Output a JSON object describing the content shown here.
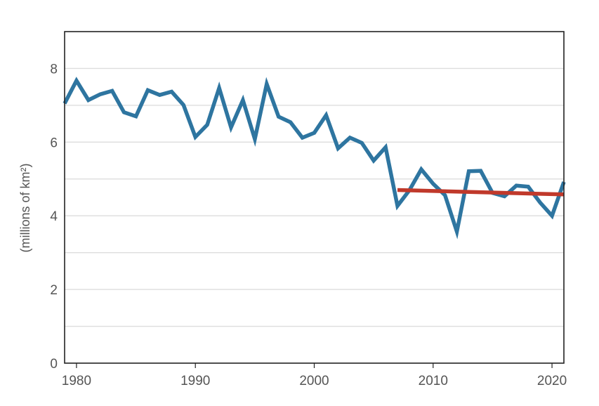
{
  "chart_data": {
    "type": "line",
    "title": "",
    "xlabel": "",
    "ylabel": "(millions of km²)",
    "xlim": [
      1979,
      2021
    ],
    "ylim": [
      0,
      9
    ],
    "grid": true,
    "x_ticks": [
      "1980",
      "1990",
      "2000",
      "2010",
      "2020"
    ],
    "y_ticks": [
      "0",
      "2",
      "4",
      "6",
      "8"
    ],
    "colors": {
      "series": "#2e75a0",
      "trend": "#c0392b",
      "grid": "#dddddd",
      "axis": "#222222"
    },
    "series": [
      {
        "x": [
          1979,
          1980,
          1981,
          1982,
          1983,
          1984,
          1985,
          1986,
          1987,
          1988,
          1989,
          1990,
          1991,
          1992,
          1993,
          1994,
          1995,
          1996,
          1997,
          1998,
          1999,
          2000,
          2001,
          2002,
          2003,
          2004,
          2005,
          2006,
          2007,
          2008,
          2009,
          2010,
          2011,
          2012,
          2013,
          2014,
          2015,
          2016,
          2017,
          2018,
          2019,
          2020,
          2021
        ],
        "values": [
          7.05,
          7.67,
          7.14,
          7.3,
          7.39,
          6.81,
          6.7,
          7.41,
          7.28,
          7.37,
          7.01,
          6.14,
          6.47,
          7.47,
          6.4,
          7.14,
          6.08,
          7.58,
          6.69,
          6.54,
          6.12,
          6.25,
          6.73,
          5.83,
          6.12,
          5.98,
          5.5,
          5.86,
          4.27,
          4.69,
          5.26,
          4.87,
          4.56,
          3.57,
          5.21,
          5.22,
          4.62,
          4.53,
          4.82,
          4.79,
          4.36,
          4.0,
          4.92
        ]
      },
      {
        "x": [
          2007,
          2021
        ],
        "values": [
          4.7,
          4.58
        ]
      }
    ]
  }
}
